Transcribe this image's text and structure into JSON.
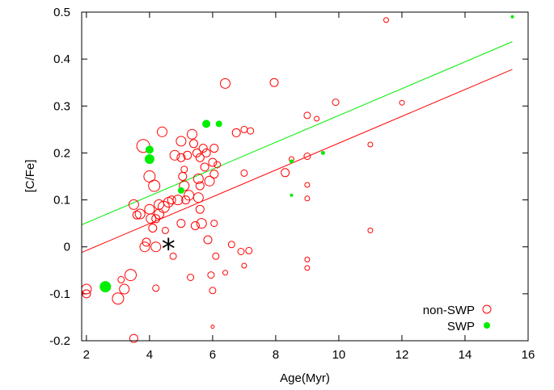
{
  "chart_data": {
    "type": "scatter",
    "xlabel": "Age(Myr)",
    "ylabel": "[C/Fe]",
    "xlim": [
      1.85,
      16
    ],
    "ylim": [
      -0.2,
      0.5
    ],
    "xticks": [
      "2",
      "4",
      "6",
      "8",
      "10",
      "12",
      "14",
      "16"
    ],
    "yticks": [
      "-0.2",
      "-0.1",
      "0",
      "0.1",
      "0.2",
      "0.3",
      "0.4",
      "0.5"
    ],
    "xtick_values": [
      2,
      4,
      6,
      8,
      10,
      12,
      14,
      16
    ],
    "ytick_values": [
      -0.2,
      -0.1,
      0,
      0.1,
      0.2,
      0.3,
      0.4,
      0.5
    ],
    "legend_position": "bottom-right",
    "series": [
      {
        "name": "non-SWP",
        "color": "#ff0000",
        "marker": "open-circle",
        "points": [
          [
            2.0,
            -0.09,
            6
          ],
          [
            2.0,
            -0.1,
            5
          ],
          [
            3.0,
            -0.11,
            7
          ],
          [
            3.1,
            -0.07,
            4
          ],
          [
            3.2,
            -0.09,
            6
          ],
          [
            3.4,
            -0.06,
            7
          ],
          [
            3.5,
            -0.195,
            5
          ],
          [
            3.5,
            0.09,
            6
          ],
          [
            3.6,
            0.068,
            5
          ],
          [
            3.7,
            0.07,
            6
          ],
          [
            3.8,
            0.215,
            8
          ],
          [
            3.85,
            0.0,
            6
          ],
          [
            3.9,
            0.01,
            5
          ],
          [
            4.0,
            0.15,
            7
          ],
          [
            4.0,
            0.08,
            6
          ],
          [
            4.05,
            0.06,
            6
          ],
          [
            4.1,
            0.04,
            5
          ],
          [
            4.15,
            0.13,
            7
          ],
          [
            4.2,
            -0.0,
            6
          ],
          [
            4.2,
            0.06,
            5
          ],
          [
            4.2,
            -0.088,
            4
          ],
          [
            4.3,
            0.07,
            6
          ],
          [
            4.3,
            0.09,
            6
          ],
          [
            4.4,
            0.245,
            6
          ],
          [
            4.45,
            0.085,
            7
          ],
          [
            4.5,
            0.035,
            4
          ],
          [
            4.6,
            0.095,
            6
          ],
          [
            4.7,
            0.1,
            5
          ],
          [
            4.75,
            -0.02,
            4
          ],
          [
            4.8,
            0.195,
            6
          ],
          [
            4.9,
            0.1,
            6
          ],
          [
            5.0,
            0.225,
            6
          ],
          [
            5.0,
            0.19,
            5
          ],
          [
            5.0,
            0.05,
            5
          ],
          [
            5.05,
            0.15,
            5
          ],
          [
            5.1,
            0.165,
            4
          ],
          [
            5.1,
            0.13,
            6
          ],
          [
            5.15,
            0.1,
            5
          ],
          [
            5.2,
            0.195,
            5
          ],
          [
            5.25,
            0.11,
            6
          ],
          [
            5.3,
            -0.065,
            4
          ],
          [
            5.35,
            0.24,
            6
          ],
          [
            5.4,
            0.22,
            5
          ],
          [
            5.45,
            0.045,
            5
          ],
          [
            5.5,
            0.2,
            5
          ],
          [
            5.55,
            0.145,
            6
          ],
          [
            5.55,
            0.105,
            6
          ],
          [
            5.6,
            0.19,
            5
          ],
          [
            5.6,
            0.13,
            5
          ],
          [
            5.6,
            0.08,
            5
          ],
          [
            5.65,
            0.05,
            6
          ],
          [
            5.7,
            0.21,
            5
          ],
          [
            5.75,
            0.17,
            5
          ],
          [
            5.8,
            0.2,
            5
          ],
          [
            5.85,
            0.015,
            5
          ],
          [
            5.9,
            0.14,
            6
          ],
          [
            5.95,
            -0.06,
            4
          ],
          [
            6.0,
            0.18,
            5
          ],
          [
            6.0,
            -0.093,
            4
          ],
          [
            6.05,
            0.05,
            4
          ],
          [
            6.05,
            0.21,
            5
          ],
          [
            6.05,
            0.155,
            5
          ],
          [
            6.1,
            -0.02,
            4
          ],
          [
            6.15,
            0.175,
            4
          ],
          [
            6.0,
            -0.17,
            2
          ],
          [
            6.4,
            0.348,
            6
          ],
          [
            6.4,
            -0.055,
            3
          ],
          [
            6.6,
            0.005,
            4
          ],
          [
            6.75,
            0.243,
            5
          ],
          [
            6.9,
            -0.01,
            4
          ],
          [
            7.0,
            0.25,
            4
          ],
          [
            7.0,
            0.157,
            4
          ],
          [
            7.0,
            -0.04,
            3
          ],
          [
            7.15,
            -0.008,
            4
          ],
          [
            7.2,
            0.247,
            4
          ],
          [
            7.95,
            0.35,
            5
          ],
          [
            8.3,
            0.158,
            5
          ],
          [
            8.5,
            0.187,
            3
          ],
          [
            9.0,
            0.28,
            4
          ],
          [
            9.0,
            0.193,
            4
          ],
          [
            9.0,
            0.132,
            3
          ],
          [
            9.0,
            0.103,
            3
          ],
          [
            9.0,
            -0.027,
            3
          ],
          [
            9.0,
            -0.045,
            3
          ],
          [
            9.3,
            0.273,
            3
          ],
          [
            9.9,
            0.308,
            4
          ],
          [
            11.0,
            0.218,
            3
          ],
          [
            11.0,
            0.035,
            3
          ],
          [
            11.5,
            0.483,
            3
          ],
          [
            12.0,
            0.307,
            3
          ]
        ]
      },
      {
        "name": "SWP",
        "color": "#00ee00",
        "marker": "filled-circle",
        "points": [
          [
            2.6,
            -0.085,
            7
          ],
          [
            4.0,
            0.207,
            5
          ],
          [
            4.0,
            0.187,
            6
          ],
          [
            5.0,
            0.12,
            4
          ],
          [
            5.8,
            0.262,
            5
          ],
          [
            6.2,
            0.262,
            4
          ],
          [
            8.5,
            0.182,
            2.5
          ],
          [
            8.5,
            0.11,
            2
          ],
          [
            9.5,
            0.2,
            2.5
          ],
          [
            15.5,
            0.49,
            2
          ]
        ]
      }
    ],
    "fit_lines": [
      {
        "color": "#00ee00",
        "x": [
          1.85,
          15.5
        ],
        "y": [
          0.047,
          0.437
        ]
      },
      {
        "color": "#ff0000",
        "x": [
          1.85,
          15.5
        ],
        "y": [
          -0.012,
          0.378
        ]
      }
    ],
    "sun_marker": {
      "x": 4.6,
      "y": 0.0,
      "label": "*"
    }
  }
}
